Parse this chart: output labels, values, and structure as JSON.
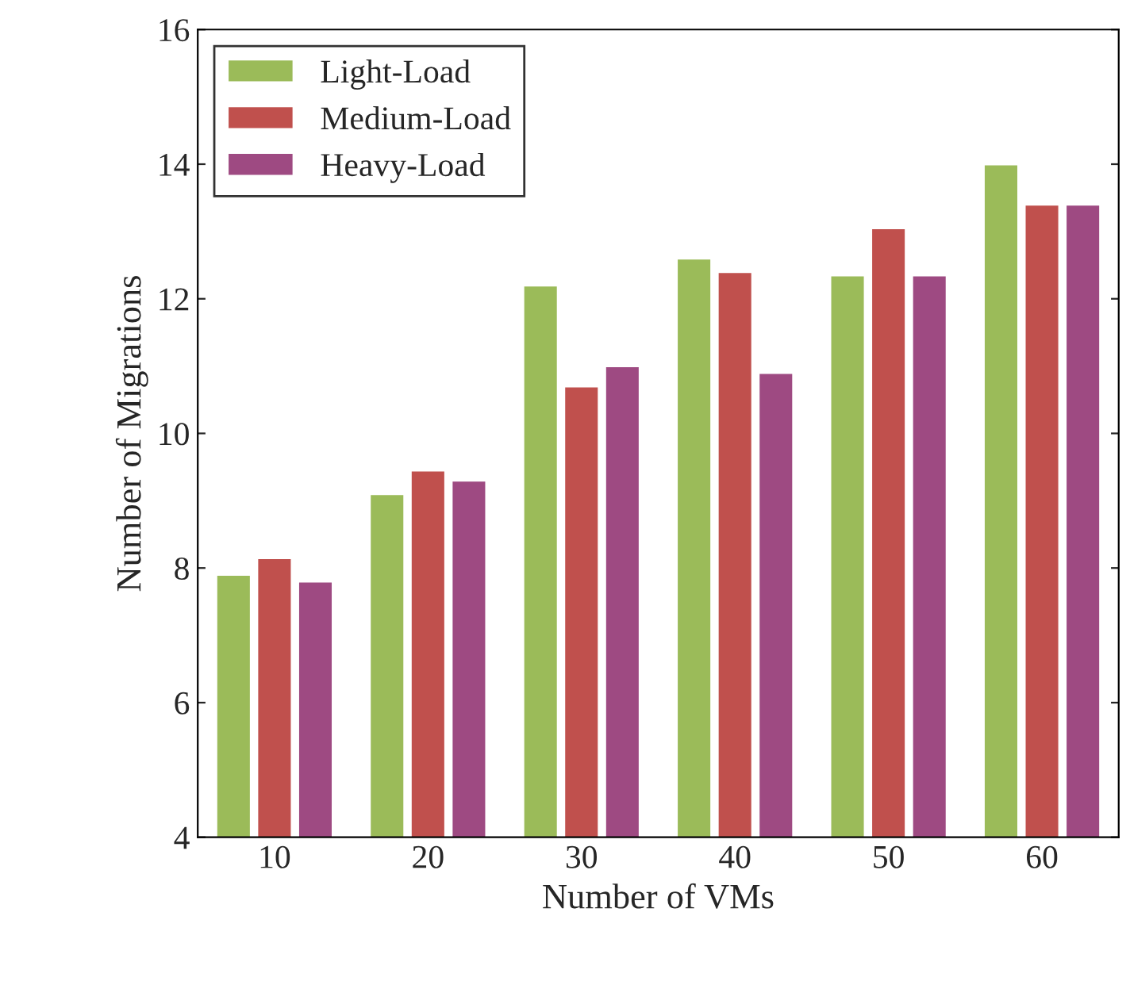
{
  "chart_data": {
    "type": "bar",
    "xlabel": "Number of VMs",
    "ylabel": "Number of Migrations",
    "categories": [
      "10",
      "20",
      "30",
      "40",
      "50",
      "60"
    ],
    "series": [
      {
        "name": "Light-Load",
        "color": "#9bbb59",
        "values": [
          7.9,
          9.1,
          12.2,
          12.6,
          12.35,
          14.0
        ]
      },
      {
        "name": "Medium-Load",
        "color": "#c0504d",
        "values": [
          8.15,
          9.45,
          10.7,
          12.4,
          13.05,
          13.4
        ]
      },
      {
        "name": "Heavy-Load",
        "color": "#9e4a82",
        "values": [
          7.8,
          9.3,
          11.0,
          10.9,
          12.35,
          13.4
        ]
      }
    ],
    "ylim": [
      4,
      16
    ],
    "yticks": [
      4,
      6,
      8,
      10,
      12,
      14,
      16
    ],
    "grid": false,
    "legend": "top left"
  }
}
